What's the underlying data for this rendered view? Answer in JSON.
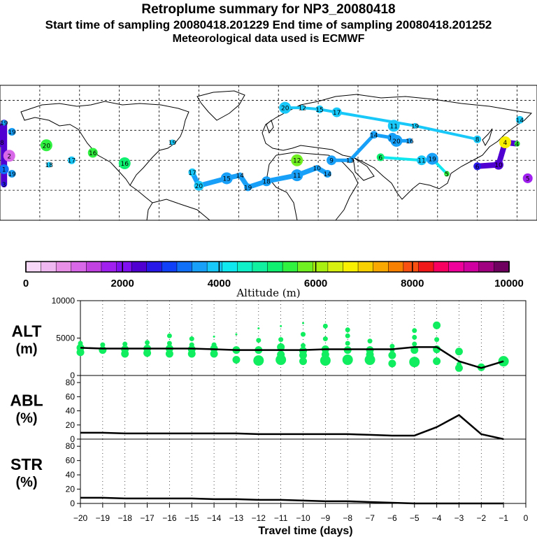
{
  "header": {
    "title": "Retroplume summary for NP3_20080418",
    "times": "Start time of sampling 20080418.201229     End time of sampling 20080418.201252",
    "met": "Meteorological data used is ECMWF"
  },
  "colors": {
    "scale": [
      "#f8d8f8",
      "#f0b8f0",
      "#e890e8",
      "#d868e8",
      "#c040e0",
      "#a020f0",
      "#8010f0",
      "#5000d0",
      "#2818e8",
      "#1040f8",
      "#1070f8",
      "#18a0f8",
      "#18c8f8",
      "#10e8f0",
      "#10f0c8",
      "#10f0a0",
      "#10f070",
      "#30f040",
      "#70f020",
      "#a8f010",
      "#d8f010",
      "#f8f000",
      "#f8d000",
      "#f8a800",
      "#f88000",
      "#f85010",
      "#f01818",
      "#f80060",
      "#f0009a",
      "#d000a0",
      "#a00080",
      "#700060"
    ],
    "series": "#10ee60",
    "line": "#000000"
  },
  "colorbar": {
    "ticks": [
      "0",
      "2000",
      "4000",
      "6000",
      "8000",
      "10000"
    ],
    "label": "Altitude (m)"
  },
  "map_labels": [
    {
      "t": "19",
      "lon": -177,
      "lat": 65,
      "alt": 3600
    },
    {
      "t": "19",
      "lon": -171,
      "lat": 59,
      "alt": 3600
    },
    {
      "t": "18",
      "lon": -180,
      "lat": 52,
      "alt": 2200
    },
    {
      "t": "2",
      "lon": -173,
      "lat": 43,
      "alt": 1200
    },
    {
      "t": "3",
      "lon": -177,
      "lat": 24,
      "alt": 2600
    },
    {
      "t": "19",
      "lon": -171,
      "lat": 31,
      "alt": 3600
    },
    {
      "t": "1",
      "lon": -177,
      "lat": 34,
      "alt": 3200
    },
    {
      "t": "20",
      "lon": -145,
      "lat": 50,
      "alt": 5400
    },
    {
      "t": "18",
      "lon": -143,
      "lat": 37,
      "alt": 3800
    },
    {
      "t": "17",
      "lon": -126,
      "lat": 40,
      "alt": 3800
    },
    {
      "t": "16",
      "lon": -110,
      "lat": 45,
      "alt": 5400
    },
    {
      "t": "16",
      "lon": -86,
      "lat": 38,
      "alt": 5000
    },
    {
      "t": "19",
      "lon": -50,
      "lat": 52,
      "alt": 4000
    },
    {
      "t": "17",
      "lon": -35,
      "lat": 32,
      "alt": 4000
    },
    {
      "t": "20",
      "lon": -30,
      "lat": 23,
      "alt": 4000
    },
    {
      "t": "15",
      "lon": -9,
      "lat": 28,
      "alt": 3600
    },
    {
      "t": "14",
      "lon": 1,
      "lat": 30,
      "alt": 3600
    },
    {
      "t": "19",
      "lon": 7,
      "lat": 22,
      "alt": 3600
    },
    {
      "t": "18",
      "lon": 21,
      "lat": 26,
      "alt": 3600
    },
    {
      "t": "11",
      "lon": 44,
      "lat": 30,
      "alt": 3600
    },
    {
      "t": "10",
      "lon": 59,
      "lat": 35,
      "alt": 3600
    },
    {
      "t": "14",
      "lon": 67,
      "lat": 31,
      "alt": 3600
    },
    {
      "t": "9",
      "lon": 70,
      "lat": 40,
      "alt": 3600
    },
    {
      "t": "12",
      "lon": 44,
      "lat": 40,
      "alt": 5800
    },
    {
      "t": "13",
      "lon": 84,
      "lat": 40,
      "alt": 3600
    },
    {
      "t": "14",
      "lon": 102,
      "lat": 57,
      "alt": 3600
    },
    {
      "t": "17",
      "lon": 116,
      "lat": 55,
      "alt": 3600
    },
    {
      "t": "20",
      "lon": 119,
      "lat": 53,
      "alt": 3600
    },
    {
      "t": "16",
      "lon": 129,
      "lat": 53,
      "alt": 3600
    },
    {
      "t": "6",
      "lon": 107,
      "lat": 42,
      "alt": 5200
    },
    {
      "t": "11",
      "lon": 138,
      "lat": 40,
      "alt": 4000
    },
    {
      "t": "19",
      "lon": 146,
      "lat": 41,
      "alt": 3600
    },
    {
      "t": "5",
      "lon": 157,
      "lat": 31,
      "alt": 5600
    },
    {
      "t": "6",
      "lon": 180,
      "lat": 36,
      "alt": 2600
    },
    {
      "t": "10",
      "lon": 196,
      "lat": 37,
      "alt": 2400
    },
    {
      "t": "4",
      "lon": 201,
      "lat": 52,
      "alt": 6600
    },
    {
      "t": "4",
      "lon": 210,
      "lat": 51,
      "alt": 5600
    },
    {
      "t": "14",
      "lon": 212,
      "lat": 67,
      "alt": 3800
    },
    {
      "t": "5",
      "lon": 218,
      "lat": 28,
      "alt": 1800
    },
    {
      "t": "20",
      "lon": 35,
      "lat": 75,
      "alt": 4000
    },
    {
      "t": "12",
      "lon": 48,
      "lat": 75,
      "alt": 4000
    },
    {
      "t": "15",
      "lon": 61,
      "lat": 74,
      "alt": 4000
    },
    {
      "t": "17",
      "lon": 74,
      "lat": 72,
      "alt": 4000
    },
    {
      "t": "11",
      "lon": 117,
      "lat": 63,
      "alt": 4000
    },
    {
      "t": "19",
      "lon": 133,
      "lat": 63,
      "alt": 4000
    },
    {
      "t": "8",
      "lon": 180,
      "lat": 54,
      "alt": 4000
    }
  ],
  "panels": [
    {
      "name": "ALT",
      "unit": "(m)",
      "ymin": 0,
      "ymax": 10000,
      "ticks": [
        "0",
        "5000",
        "10000"
      ]
    },
    {
      "name": "ABL",
      "unit": "(%)",
      "ymin": 0,
      "ymax": 90,
      "ticks": [
        "0",
        "20",
        "40",
        "60",
        "80"
      ]
    },
    {
      "name": "STR",
      "unit": "(%)",
      "ymin": 0,
      "ymax": 90,
      "ticks": [
        "0",
        "20",
        "40",
        "60",
        "80"
      ]
    }
  ],
  "x_axis": {
    "label": "Travel time (days)",
    "ticks": [
      "-20",
      "-19",
      "-18",
      "-17",
      "-16",
      "-15",
      "-14",
      "-13",
      "-12",
      "-11",
      "-10",
      "-9",
      "-8",
      "-7",
      "-6",
      "-5",
      "-4",
      "-3",
      "-2",
      "-1",
      "0"
    ],
    "xlim": [
      -20,
      0
    ]
  },
  "chart_data": [
    {
      "type": "line",
      "title": "ALT",
      "ylabel": "ALT (m)",
      "xlabel": "Travel time (days)",
      "x": [
        -20,
        -19,
        -18,
        -17,
        -16,
        -15,
        -14,
        -13,
        -12,
        -11,
        -10,
        -9,
        -8,
        -7,
        -6,
        -5,
        -4,
        -3,
        -2,
        -1
      ],
      "values": [
        3700,
        3600,
        3600,
        3600,
        3600,
        3600,
        3500,
        3400,
        3400,
        3400,
        3400,
        3500,
        3500,
        3500,
        3500,
        3800,
        3800,
        1900,
        1000,
        1900
      ],
      "scatter": [
        [
          -20,
          4300,
          1
        ],
        [
          -20,
          3700,
          2
        ],
        [
          -20,
          3100,
          2
        ],
        [
          -19,
          4100,
          1
        ],
        [
          -19,
          3400,
          2
        ],
        [
          -18,
          4200,
          1
        ],
        [
          -18,
          3500,
          2
        ],
        [
          -18,
          2900,
          2
        ],
        [
          -17,
          4400,
          1
        ],
        [
          -17,
          3600,
          2
        ],
        [
          -17,
          3000,
          2
        ],
        [
          -16,
          5300,
          1
        ],
        [
          -16,
          4300,
          1
        ],
        [
          -16,
          3600,
          2
        ],
        [
          -16,
          2900,
          2
        ],
        [
          -15,
          4900,
          1
        ],
        [
          -15,
          4100,
          1
        ],
        [
          -15,
          3500,
          2
        ],
        [
          -15,
          2900,
          2
        ],
        [
          -14,
          5200,
          0
        ],
        [
          -14,
          4100,
          1
        ],
        [
          -14,
          3600,
          2
        ],
        [
          -14,
          2900,
          2
        ],
        [
          -13,
          5500,
          0
        ],
        [
          -13,
          3400,
          2
        ],
        [
          -13,
          2100,
          2
        ],
        [
          -12,
          6300,
          0
        ],
        [
          -12,
          4700,
          1
        ],
        [
          -12,
          3400,
          2
        ],
        [
          -12,
          2000,
          3
        ],
        [
          -11,
          6600,
          0
        ],
        [
          -11,
          4800,
          1
        ],
        [
          -11,
          3800,
          2
        ],
        [
          -11,
          2800,
          2
        ],
        [
          -11,
          2100,
          3
        ],
        [
          -10,
          7000,
          0
        ],
        [
          -10,
          5500,
          1
        ],
        [
          -10,
          4000,
          1
        ],
        [
          -10,
          3300,
          2
        ],
        [
          -10,
          2700,
          2
        ],
        [
          -10,
          1900,
          2
        ],
        [
          -9,
          6600,
          1
        ],
        [
          -9,
          4900,
          1
        ],
        [
          -9,
          3500,
          2
        ],
        [
          -9,
          2800,
          2
        ],
        [
          -9,
          2000,
          3
        ],
        [
          -8,
          6100,
          1
        ],
        [
          -8,
          5300,
          1
        ],
        [
          -8,
          4300,
          1
        ],
        [
          -8,
          3400,
          2
        ],
        [
          -8,
          2100,
          3
        ],
        [
          -7,
          4600,
          1
        ],
        [
          -7,
          3400,
          2
        ],
        [
          -7,
          2800,
          2
        ],
        [
          -7,
          2100,
          3
        ],
        [
          -6,
          3900,
          1
        ],
        [
          -6,
          3400,
          1
        ],
        [
          -6,
          2700,
          2
        ],
        [
          -6,
          1600,
          2
        ],
        [
          -5,
          6000,
          1
        ],
        [
          -5,
          5100,
          1
        ],
        [
          -5,
          4200,
          1
        ],
        [
          -5,
          3400,
          2
        ],
        [
          -5,
          1800,
          3
        ],
        [
          -4,
          6700,
          2
        ],
        [
          -4,
          4800,
          1
        ],
        [
          -4,
          3500,
          2
        ],
        [
          -4,
          1900,
          2
        ],
        [
          -3,
          3200,
          2
        ],
        [
          -3,
          1500,
          1
        ],
        [
          -3,
          1000,
          2
        ],
        [
          -2,
          1100,
          2
        ],
        [
          -1,
          1900,
          3
        ]
      ],
      "ylim": [
        0,
        10000
      ]
    },
    {
      "type": "line",
      "title": "ABL",
      "ylabel": "ABL (%)",
      "xlabel": "Travel time (days)",
      "x": [
        -20,
        -19,
        -18,
        -17,
        -16,
        -15,
        -14,
        -13,
        -12,
        -11,
        -10,
        -9,
        -8,
        -7,
        -6,
        -5,
        -4,
        -3,
        -2,
        -1
      ],
      "values": [
        9,
        9,
        8,
        8,
        8,
        8,
        8,
        8,
        7,
        7,
        7,
        7,
        7,
        6,
        5,
        5,
        17,
        34,
        7,
        0
      ],
      "ylim": [
        0,
        90
      ]
    },
    {
      "type": "line",
      "title": "STR",
      "ylabel": "STR (%)",
      "xlabel": "Travel time (days)",
      "x": [
        -20,
        -19,
        -18,
        -17,
        -16,
        -15,
        -14,
        -13,
        -12,
        -11,
        -10,
        -9,
        -8,
        -7,
        -6,
        -5,
        -4,
        -3,
        -2,
        -1
      ],
      "values": [
        8,
        8,
        7,
        7,
        7,
        7,
        6,
        6,
        5,
        5,
        4,
        3,
        3,
        2,
        1,
        0,
        0,
        0,
        0,
        0
      ],
      "ylim": [
        0,
        90
      ]
    }
  ]
}
